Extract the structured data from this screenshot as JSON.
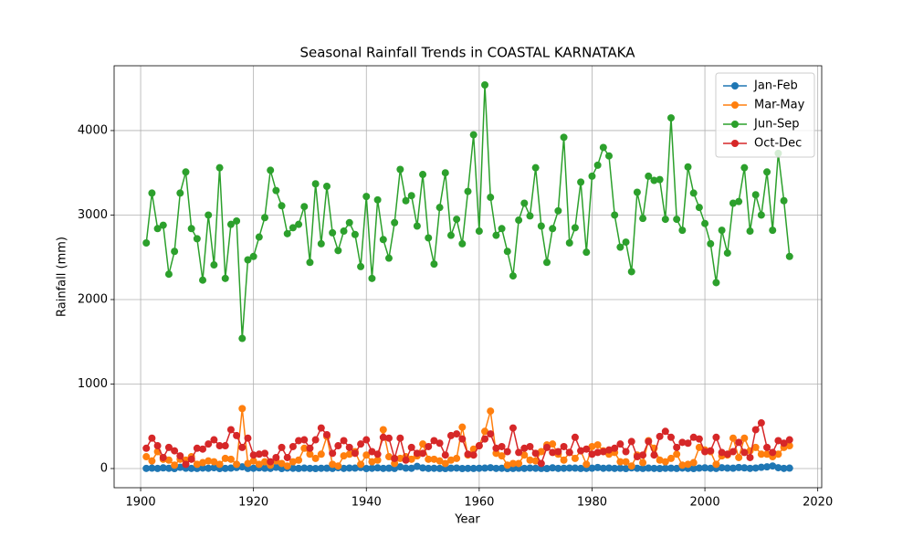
{
  "chart_data": {
    "type": "line",
    "title": "Seasonal Rainfall Trends in COASTAL KARNATAKA",
    "xlabel": "Year",
    "ylabel": "Rainfall (mm)",
    "x": [
      1901,
      1902,
      1903,
      1904,
      1905,
      1906,
      1907,
      1908,
      1909,
      1910,
      1911,
      1912,
      1913,
      1914,
      1915,
      1916,
      1917,
      1918,
      1919,
      1920,
      1921,
      1922,
      1923,
      1924,
      1925,
      1926,
      1927,
      1928,
      1929,
      1930,
      1931,
      1932,
      1933,
      1934,
      1935,
      1936,
      1937,
      1938,
      1939,
      1940,
      1941,
      1942,
      1943,
      1944,
      1945,
      1946,
      1947,
      1948,
      1949,
      1950,
      1951,
      1952,
      1953,
      1954,
      1955,
      1956,
      1957,
      1958,
      1959,
      1960,
      1961,
      1962,
      1963,
      1964,
      1965,
      1966,
      1967,
      1968,
      1969,
      1970,
      1971,
      1972,
      1973,
      1974,
      1975,
      1976,
      1977,
      1978,
      1979,
      1980,
      1981,
      1982,
      1983,
      1984,
      1985,
      1986,
      1987,
      1988,
      1989,
      1990,
      1991,
      1992,
      1993,
      1994,
      1995,
      1996,
      1997,
      1998,
      1999,
      2000,
      2001,
      2002,
      2003,
      2004,
      2005,
      2006,
      2007,
      2008,
      2009,
      2010,
      2011,
      2012,
      2013,
      2014,
      2015
    ],
    "series": [
      {
        "name": "Jan-Feb",
        "color": "#1f77b4",
        "values": [
          2,
          5,
          1,
          8,
          3,
          0,
          15,
          4,
          2,
          1,
          6,
          3,
          10,
          0,
          2,
          5,
          12,
          20,
          1,
          3,
          8,
          4,
          2,
          15,
          0,
          6,
          3,
          1,
          5,
          2,
          0,
          3,
          4,
          1,
          10,
          2,
          6,
          5,
          12,
          0,
          3,
          8,
          2,
          4,
          1,
          20,
          5,
          3,
          25,
          7,
          2,
          3,
          1,
          0,
          4,
          6,
          0,
          2,
          1,
          3,
          5,
          10,
          2,
          3,
          0,
          1,
          4,
          2,
          6,
          3,
          1,
          0,
          8,
          2,
          3,
          6,
          5,
          1,
          2,
          4,
          12,
          3,
          6,
          2,
          4,
          0,
          8,
          3,
          1,
          5,
          2,
          0,
          3,
          4,
          1,
          6,
          2,
          0,
          5,
          8,
          3,
          1,
          10,
          5,
          4,
          12,
          8,
          2,
          6,
          15,
          20,
          30,
          10,
          2,
          5
        ]
      },
      {
        "name": "Mar-May",
        "color": "#ff7f0e",
        "values": [
          140,
          90,
          200,
          110,
          100,
          40,
          110,
          100,
          140,
          50,
          70,
          90,
          80,
          50,
          120,
          110,
          50,
          710,
          60,
          90,
          50,
          80,
          40,
          90,
          60,
          30,
          80,
          100,
          240,
          170,
          120,
          170,
          380,
          50,
          30,
          150,
          170,
          200,
          50,
          160,
          80,
          100,
          460,
          140,
          60,
          120,
          140,
          110,
          150,
          290,
          110,
          110,
          90,
          60,
          100,
          120,
          490,
          160,
          230,
          270,
          440,
          680,
          180,
          150,
          40,
          60,
          60,
          160,
          100,
          90,
          200,
          280,
          290,
          170,
          100,
          190,
          120,
          210,
          50,
          260,
          280,
          210,
          170,
          190,
          80,
          80,
          30,
          160,
          70,
          330,
          240,
          100,
          80,
          120,
          170,
          40,
          50,
          70,
          250,
          220,
          200,
          50,
          150,
          160,
          360,
          130,
          360,
          210,
          250,
          170,
          170,
          140,
          170,
          250,
          270
        ]
      },
      {
        "name": "Jun-Sep",
        "color": "#2ca02c",
        "values": [
          2670,
          3260,
          2840,
          2880,
          2300,
          2570,
          3260,
          3510,
          2840,
          2720,
          2230,
          3000,
          2410,
          3560,
          2250,
          2890,
          2930,
          1540,
          2470,
          2510,
          2740,
          2970,
          3530,
          3290,
          3110,
          2780,
          2850,
          2890,
          3100,
          2440,
          3370,
          2660,
          3340,
          2790,
          2580,
          2810,
          2910,
          2770,
          2390,
          3220,
          2250,
          3180,
          2710,
          2490,
          2910,
          3540,
          3170,
          3230,
          2870,
          3480,
          2730,
          2420,
          3090,
          3500,
          2760,
          2950,
          2660,
          3280,
          3950,
          2810,
          4540,
          3210,
          2760,
          2840,
          2570,
          2280,
          2940,
          3140,
          2990,
          3560,
          2870,
          2440,
          2840,
          3050,
          3920,
          2670,
          2850,
          3390,
          2560,
          3460,
          3590,
          3800,
          3700,
          3000,
          2620,
          2680,
          2330,
          3270,
          2960,
          3460,
          3410,
          3420,
          2950,
          4150,
          2950,
          2820,
          3570,
          3260,
          3090,
          2900,
          2660,
          2200,
          2820,
          2550,
          3140,
          3160,
          3560,
          2810,
          3240,
          3000,
          3510,
          2820,
          3730,
          3170,
          2510
        ]
      },
      {
        "name": "Oct-Dec",
        "color": "#d62728",
        "values": [
          240,
          360,
          270,
          130,
          250,
          210,
          150,
          50,
          110,
          240,
          230,
          290,
          340,
          270,
          270,
          460,
          390,
          250,
          360,
          160,
          170,
          180,
          80,
          130,
          250,
          130,
          260,
          330,
          340,
          240,
          340,
          480,
          400,
          180,
          270,
          330,
          250,
          180,
          290,
          340,
          200,
          170,
          370,
          360,
          120,
          360,
          100,
          250,
          180,
          180,
          260,
          330,
          300,
          160,
          390,
          410,
          350,
          170,
          160,
          270,
          350,
          410,
          240,
          260,
          200,
          480,
          190,
          240,
          260,
          180,
          60,
          250,
          190,
          200,
          260,
          190,
          370,
          210,
          230,
          170,
          190,
          200,
          220,
          240,
          290,
          200,
          320,
          140,
          160,
          320,
          160,
          380,
          440,
          370,
          250,
          310,
          300,
          370,
          350,
          200,
          210,
          370,
          190,
          170,
          200,
          310,
          190,
          130,
          460,
          540,
          250,
          190,
          330,
          300,
          340
        ]
      }
    ],
    "xlim": [
      1895.3,
      2020.7
    ],
    "ylim": [
      -227,
      4767
    ],
    "xticks": [
      1900,
      1920,
      1940,
      1960,
      1980,
      2000,
      2020
    ],
    "yticks": [
      0,
      1000,
      2000,
      3000,
      4000
    ],
    "grid": true,
    "legend": "upper-right"
  }
}
